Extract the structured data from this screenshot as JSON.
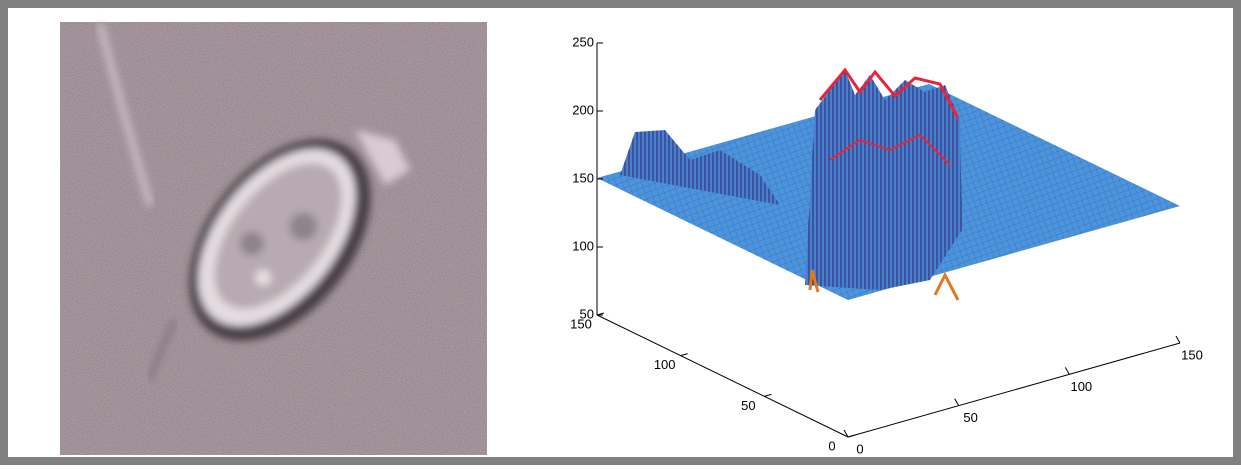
{
  "chart_data": {
    "type": "surface",
    "xlim": [
      0,
      150
    ],
    "xticks": [
      0,
      50,
      100,
      150
    ],
    "ylim": [
      0,
      150
    ],
    "yticks": [
      0,
      50,
      100,
      150
    ],
    "zlim": [
      50,
      250
    ],
    "zticks": [
      50,
      100,
      150,
      200,
      250
    ]
  }
}
